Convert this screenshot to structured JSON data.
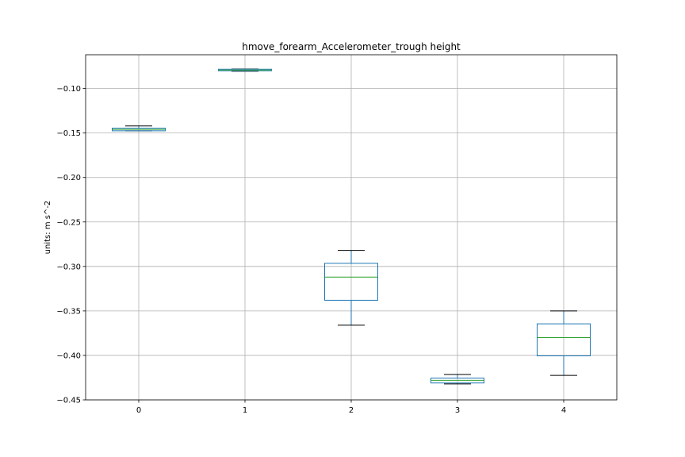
{
  "chart_data": {
    "type": "boxplot",
    "title": "hmove_forearm_Accelerometer_trough height",
    "xlabel": "",
    "ylabel": "units: m s^-2",
    "ylim": [
      -0.45,
      -0.062
    ],
    "yticks": [
      -0.45,
      -0.4,
      -0.35,
      -0.3,
      -0.25,
      -0.2,
      -0.15,
      -0.1
    ],
    "ytick_labels": [
      "−0.45",
      "−0.40",
      "−0.35",
      "−0.30",
      "−0.25",
      "−0.20",
      "−0.15",
      "−0.10"
    ],
    "categories": [
      "0",
      "1",
      "2",
      "3",
      "4"
    ],
    "grid": true,
    "box_color": "#1f77b4",
    "median_color": "#2ca02c",
    "whisker_cap_color": "#000000",
    "boxes": [
      {
        "category": "0",
        "whislo": -0.1475,
        "q1": -0.1475,
        "med": -0.146,
        "q3": -0.1445,
        "whishi": -0.142
      },
      {
        "category": "1",
        "whislo": -0.0805,
        "q1": -0.08,
        "med": -0.0792,
        "q3": -0.0783,
        "whishi": -0.078
      },
      {
        "category": "2",
        "whislo": -0.366,
        "q1": -0.338,
        "med": -0.312,
        "q3": -0.2965,
        "whishi": -0.282
      },
      {
        "category": "3",
        "whislo": -0.432,
        "q1": -0.431,
        "med": -0.428,
        "q3": -0.4255,
        "whishi": -0.4215
      },
      {
        "category": "4",
        "whislo": -0.4225,
        "q1": -0.4005,
        "med": -0.38,
        "q3": -0.3645,
        "whishi": -0.35
      }
    ]
  }
}
